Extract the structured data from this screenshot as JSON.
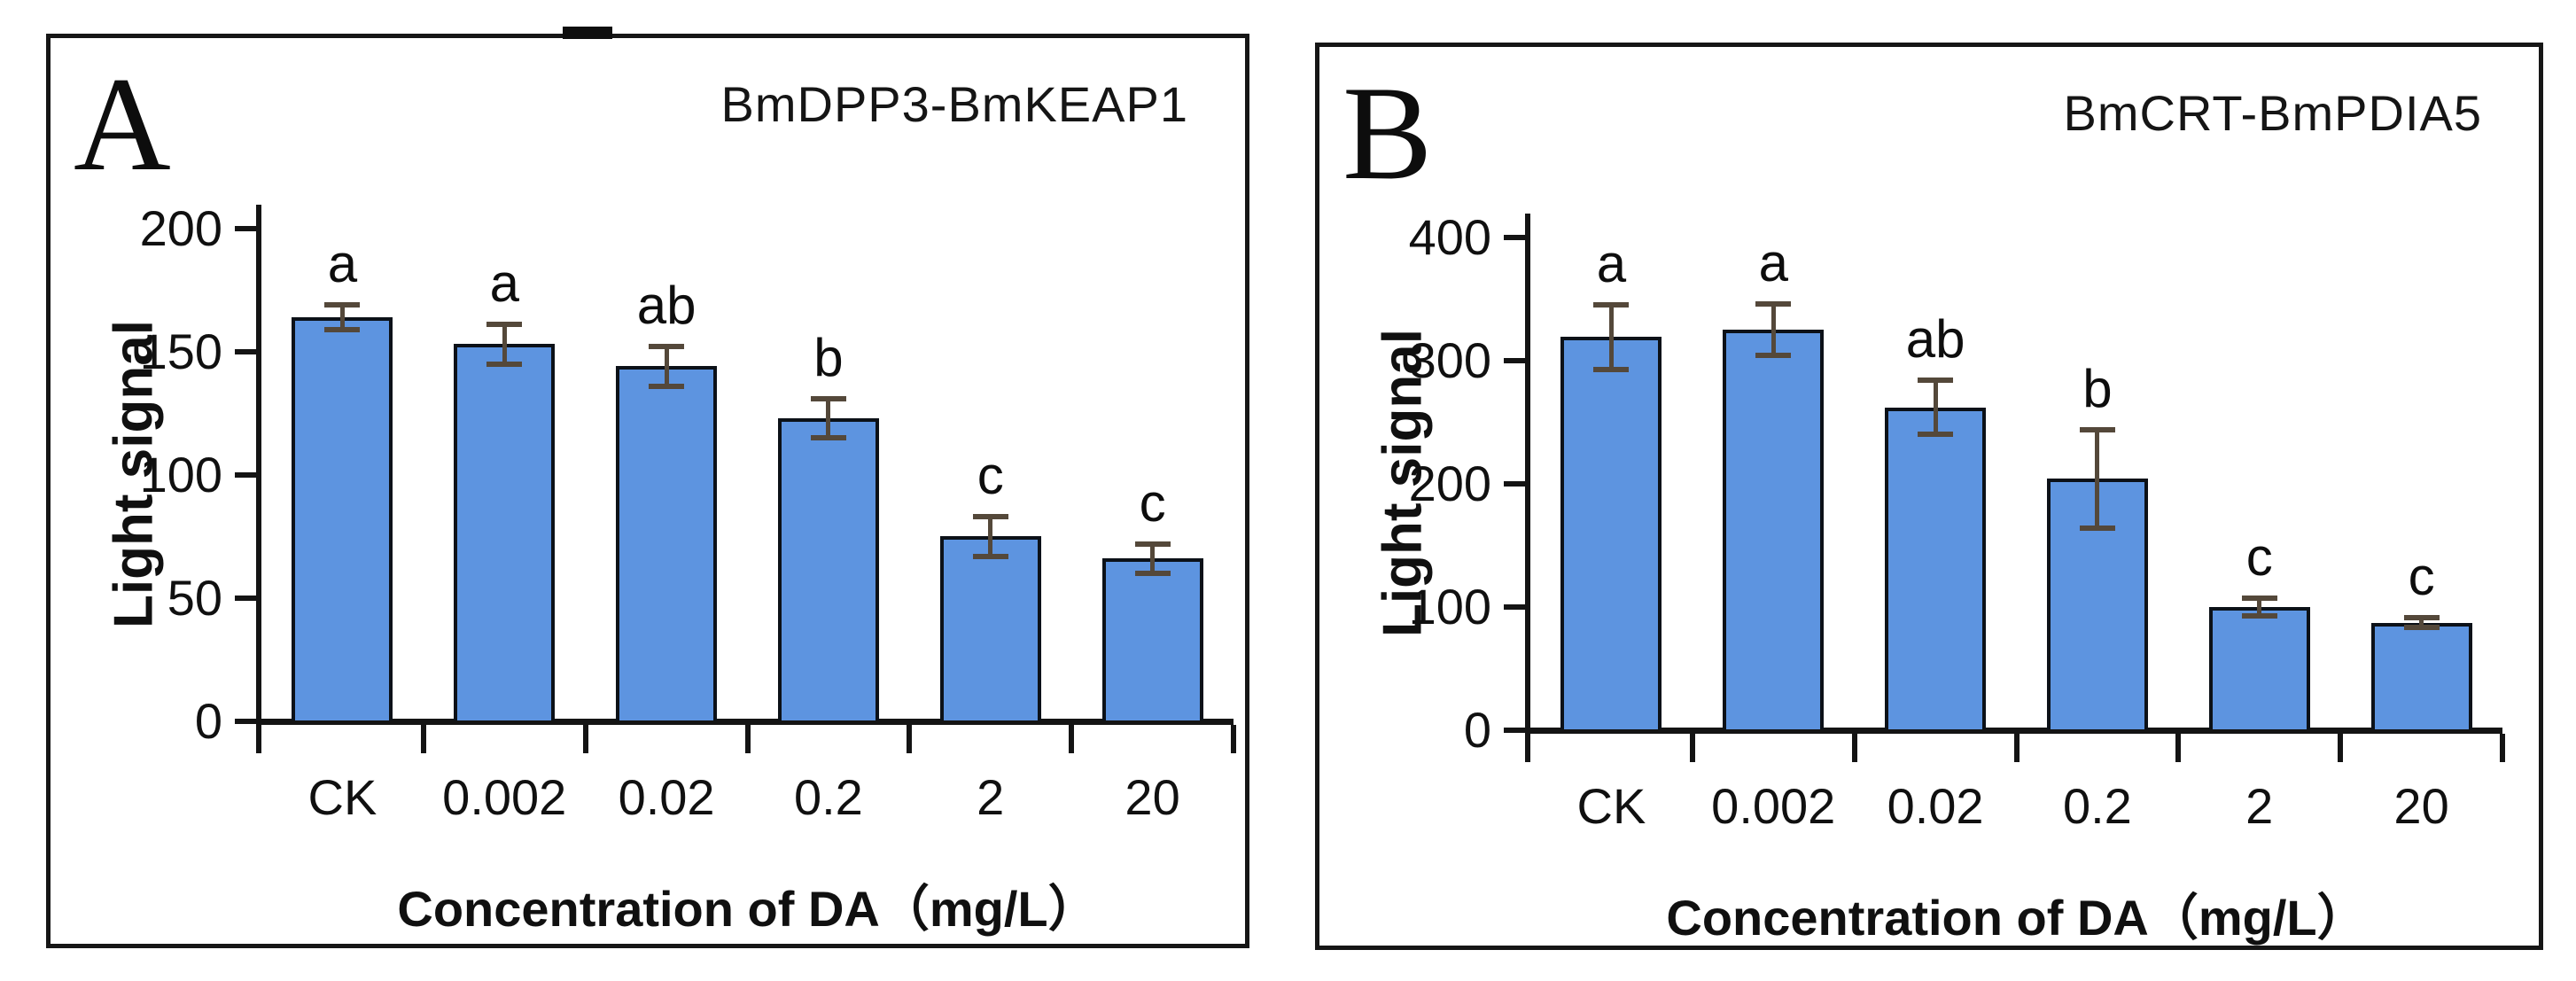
{
  "figure": {
    "background": "#ffffff",
    "top_edge_artifact": true
  },
  "colors": {
    "bar_fill": "#5d94e0",
    "bar_border": "#0c1118",
    "error_bar": "#54483a",
    "axis": "#141414",
    "panel_border": "#161616",
    "text": "#121212"
  },
  "chart_data": [
    {
      "type": "bar",
      "panel_label": "A",
      "title": "BmDPP3-BmKEAP1",
      "ylabel": "Light signal",
      "xlabel": "Concentration of DA（mg/L）",
      "categories": [
        "CK",
        "0.002",
        "0.02",
        "0.2",
        "2",
        "20"
      ],
      "values": [
        163,
        152,
        143,
        122,
        74,
        65
      ],
      "errors": [
        5,
        8,
        8,
        8,
        8,
        6
      ],
      "sig_letters": [
        "a",
        "a",
        "ab",
        "b",
        "c",
        "c"
      ],
      "ylim": [
        0,
        200
      ],
      "yticks": [
        0,
        50,
        100,
        150,
        200
      ],
      "grid": "off",
      "legend": "none"
    },
    {
      "type": "bar",
      "panel_label": "B",
      "title": "BmCRT-BmPDIA5",
      "ylabel": "Light signal",
      "xlabel": "Concentration of DA（mg/L）",
      "categories": [
        "CK",
        "0.002",
        "0.02",
        "0.2",
        "2",
        "20"
      ],
      "values": [
        317,
        323,
        260,
        202,
        98,
        85
      ],
      "errors": [
        26,
        21,
        22,
        40,
        7,
        4
      ],
      "sig_letters": [
        "a",
        "a",
        "ab",
        "b",
        "c",
        "c"
      ],
      "ylim": [
        0,
        400
      ],
      "yticks": [
        0,
        100,
        200,
        300,
        400
      ],
      "grid": "off",
      "legend": "none"
    }
  ]
}
